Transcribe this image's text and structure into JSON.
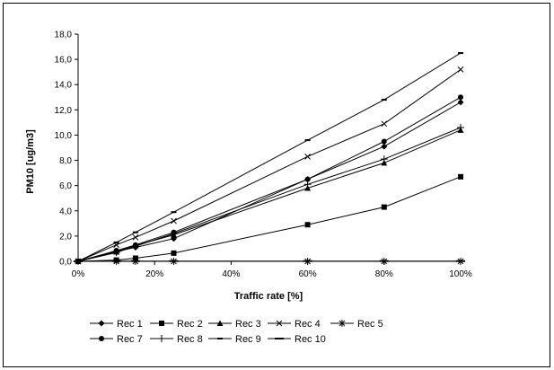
{
  "chart_data": {
    "type": "line",
    "title": "",
    "xlabel": "Traffic rate [%]",
    "ylabel": "PM10 [ug/m3]",
    "x": [
      0,
      10,
      15,
      25,
      60,
      80,
      100
    ],
    "xlim": [
      0,
      100
    ],
    "ylim": [
      0,
      18
    ],
    "x_ticks": [
      0,
      20,
      40,
      60,
      80,
      100
    ],
    "x_tick_labels": [
      "0%",
      "20%",
      "40%",
      "60%",
      "80%",
      "100%"
    ],
    "y_ticks": [
      0,
      2,
      4,
      6,
      8,
      10,
      12,
      14,
      16,
      18
    ],
    "y_tick_labels": [
      "0,0",
      "2,0",
      "4,0",
      "6,0",
      "8,0",
      "10,0",
      "12,0",
      "14,0",
      "16,0",
      "18,0"
    ],
    "grid": false,
    "legend_position": "bottom",
    "series": [
      {
        "name": "Rec 1",
        "marker": "diamond",
        "values": [
          0,
          0.8,
          1.1,
          1.8,
          6.5,
          9.1,
          12.6
        ]
      },
      {
        "name": "Rec 2",
        "marker": "square",
        "values": [
          0,
          0.1,
          0.25,
          0.65,
          2.9,
          4.3,
          6.7
        ]
      },
      {
        "name": "Rec 3",
        "marker": "triangle",
        "values": [
          0,
          0.75,
          1.25,
          2.1,
          5.8,
          7.8,
          10.4
        ]
      },
      {
        "name": "Rec 4",
        "marker": "x",
        "values": [
          0,
          1.3,
          1.9,
          3.2,
          8.3,
          10.9,
          15.2
        ]
      },
      {
        "name": "Rec 5",
        "marker": "asterisk",
        "values": [
          0,
          0,
          0,
          0,
          0,
          0,
          0
        ]
      },
      {
        "name": "Rec 7",
        "marker": "circle",
        "values": [
          0,
          0.85,
          1.3,
          2.3,
          6.5,
          9.5,
          13.0
        ]
      },
      {
        "name": "Rec 8",
        "marker": "plus",
        "values": [
          0,
          0.7,
          1.2,
          2.2,
          6.1,
          8.1,
          10.6
        ]
      },
      {
        "name": "Rec 9",
        "marker": "dash",
        "values": [
          0,
          1.5,
          2.3,
          3.9,
          9.6,
          12.8,
          16.5
        ]
      },
      {
        "name": "Rec 10",
        "marker": "longdash",
        "values": [
          0,
          0.02,
          0.02,
          0.02,
          0.02,
          0.02,
          0.02
        ]
      }
    ]
  }
}
